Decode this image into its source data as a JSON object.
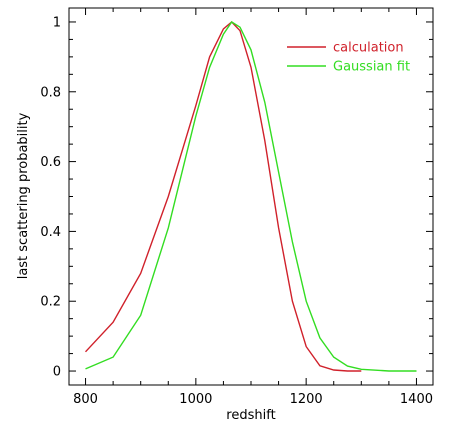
{
  "chart_data": {
    "type": "line",
    "xlabel": "redshift",
    "ylabel": "last scattering probability",
    "xlim": [
      770,
      1430
    ],
    "ylim": [
      -0.04,
      1.04
    ],
    "x_ticks": [
      800,
      1000,
      1200,
      1400
    ],
    "x_tick_labels": [
      "800",
      "1000",
      "1200",
      "1400"
    ],
    "y_ticks": [
      0,
      0.2,
      0.4,
      0.6,
      0.8,
      1
    ],
    "y_tick_labels": [
      "0",
      "0.2",
      "0.4",
      "0.6",
      "0.8",
      "1"
    ],
    "grid": false,
    "legend_position": "top-right",
    "series": [
      {
        "name": "calculation",
        "color": "#d0212b",
        "x": [
          800,
          850,
          900,
          950,
          1000,
          1025,
          1050,
          1065,
          1080,
          1100,
          1125,
          1150,
          1175,
          1200,
          1225,
          1250,
          1275,
          1300
        ],
        "y": [
          0.055,
          0.14,
          0.28,
          0.5,
          0.76,
          0.9,
          0.98,
          1.0,
          0.975,
          0.87,
          0.66,
          0.41,
          0.2,
          0.07,
          0.015,
          0.003,
          0.0,
          0.0
        ]
      },
      {
        "name": "Gaussian fit",
        "color": "#33dd22",
        "x": [
          800,
          850,
          900,
          950,
          1000,
          1025,
          1050,
          1065,
          1080,
          1100,
          1125,
          1150,
          1175,
          1200,
          1225,
          1250,
          1275,
          1300,
          1350,
          1400
        ],
        "y": [
          0.006,
          0.04,
          0.16,
          0.41,
          0.73,
          0.87,
          0.965,
          1.0,
          0.985,
          0.92,
          0.77,
          0.57,
          0.37,
          0.2,
          0.095,
          0.04,
          0.014,
          0.005,
          0.0,
          0.0
        ]
      }
    ]
  }
}
